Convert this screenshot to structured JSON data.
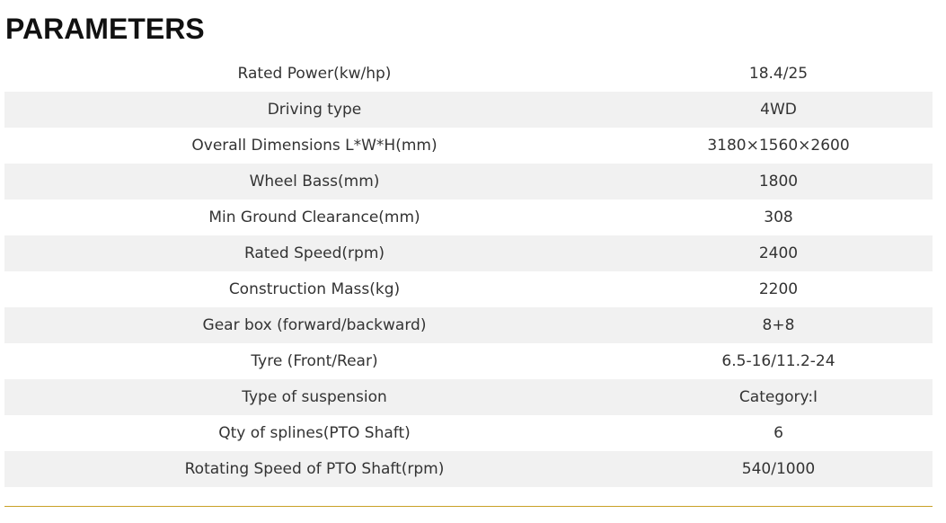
{
  "title": "PARAMETERS",
  "accent_color": "#c9a227",
  "rows": [
    {
      "label": "Rated Power(kw/hp)",
      "value": "18.4/25"
    },
    {
      "label": "Driving type",
      "value": "4WD"
    },
    {
      "label": "Overall Dimensions L*W*H(mm)",
      "value": "3180×1560×2600"
    },
    {
      "label": "Wheel Bass(mm)",
      "value": "1800"
    },
    {
      "label": "Min Ground Clearance(mm)",
      "value": "308"
    },
    {
      "label": "Rated Speed(rpm)",
      "value": "2400"
    },
    {
      "label": "Construction Mass(kg)",
      "value": "2200"
    },
    {
      "label": "Gear box (forward/backward)",
      "value": "8+8"
    },
    {
      "label": "Tyre (Front/Rear)",
      "value": "6.5-16/11.2-24"
    },
    {
      "label": "Type of suspension",
      "value": "Category:I"
    },
    {
      "label": "Qty of splines(PTO Shaft)",
      "value": "6"
    },
    {
      "label": "Rotating Speed of PTO Shaft(rpm)",
      "value": "540/1000"
    }
  ]
}
